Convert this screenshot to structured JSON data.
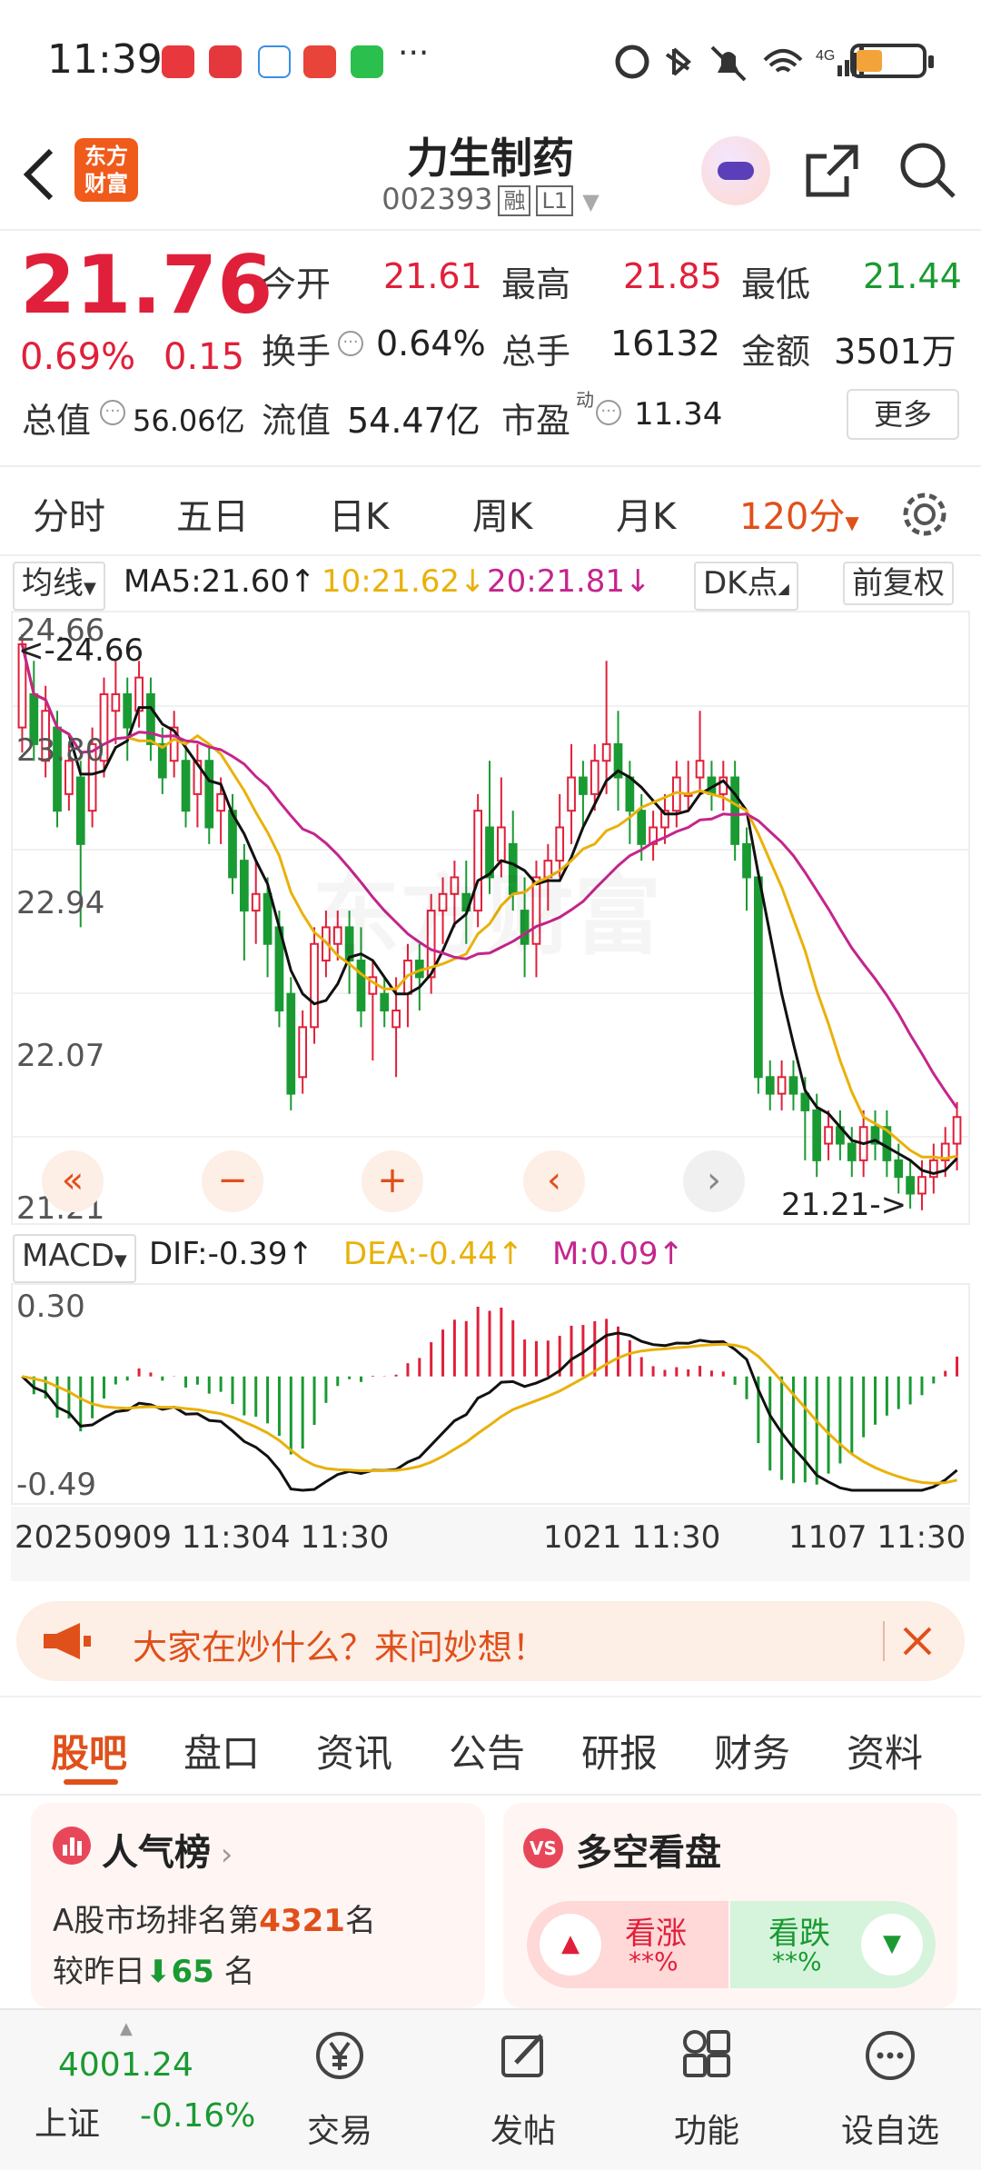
{
  "status_bar": {
    "time": "11:39",
    "network": "4G"
  },
  "header": {
    "back_icon": "chevron-left-icon",
    "logo_line1": "东方",
    "logo_line2": "财富",
    "stock_name": "力生制药",
    "stock_code": "002393",
    "tag_margin": "融",
    "tag_level": "L1"
  },
  "quote": {
    "price": "21.76",
    "change_pct": "0.69%",
    "change_amt": "0.15",
    "open_label": "今开",
    "open": "21.61",
    "high_label": "最高",
    "high": "21.85",
    "low_label": "最低",
    "low": "21.44",
    "turnover_label": "换手",
    "turnover": "0.64%",
    "volume_label": "总手",
    "volume": "16132",
    "amount_label": "金额",
    "amount": "3501万",
    "mktcap_label": "总值",
    "mktcap": "56.06亿",
    "float_label": "流值",
    "float": "54.47亿",
    "pe_label": "市盈",
    "pe_sup": "动",
    "pe": "11.34",
    "more_label": "更多"
  },
  "kline_tabs": [
    "分时",
    "五日",
    "日K",
    "周K",
    "月K",
    "120分"
  ],
  "legend": {
    "ma_select": "均线",
    "ma5": "MA5:21.60",
    "ma10": "10:21.62",
    "ma20": "20:21.81",
    "dk_label": "DK点",
    "adjust_label": "前复权",
    "macd_select": "MACD",
    "dif": "DIF:-0.39",
    "dea": "DEA:-0.44",
    "m": "M:0.09"
  },
  "chart_data": [
    {
      "type": "candlestick",
      "y_ticks": [
        "24.66",
        "23.80",
        "22.94",
        "22.07",
        "21.21"
      ],
      "ylim": [
        21.21,
        24.66
      ],
      "high_marker": "<-24.66",
      "low_marker": "21.21->",
      "x_labels": [
        "20250909 11:30",
        "4 11:30",
        "1021 11:30",
        "1107 11:30"
      ],
      "series_names": [
        "MA5",
        "MA10",
        "MA20"
      ],
      "candles": [
        {
          "o": 24.1,
          "c": 24.6,
          "h": 24.66,
          "l": 23.95
        },
        {
          "o": 24.3,
          "c": 24.0,
          "h": 24.5,
          "l": 23.9
        },
        {
          "o": 23.9,
          "c": 24.2,
          "h": 24.35,
          "l": 23.8
        },
        {
          "o": 24.1,
          "c": 23.6,
          "h": 24.2,
          "l": 23.5
        },
        {
          "o": 23.7,
          "c": 23.9,
          "h": 24.0,
          "l": 23.6
        },
        {
          "o": 23.8,
          "c": 23.4,
          "h": 23.9,
          "l": 22.9
        },
        {
          "o": 23.6,
          "c": 24.0,
          "h": 24.1,
          "l": 23.5
        },
        {
          "o": 23.9,
          "c": 24.3,
          "h": 24.4,
          "l": 23.8
        },
        {
          "o": 24.2,
          "c": 24.3,
          "h": 24.5,
          "l": 24.0
        },
        {
          "o": 24.3,
          "c": 24.1,
          "h": 24.4,
          "l": 23.9
        },
        {
          "o": 24.2,
          "c": 24.4,
          "h": 24.5,
          "l": 24.1
        },
        {
          "o": 24.3,
          "c": 24.0,
          "h": 24.4,
          "l": 23.9
        },
        {
          "o": 24.0,
          "c": 23.8,
          "h": 24.1,
          "l": 23.7
        },
        {
          "o": 23.9,
          "c": 24.1,
          "h": 24.2,
          "l": 23.8
        },
        {
          "o": 23.9,
          "c": 23.6,
          "h": 24.0,
          "l": 23.5
        },
        {
          "o": 23.7,
          "c": 23.9,
          "h": 24.0,
          "l": 23.5
        },
        {
          "o": 23.9,
          "c": 23.5,
          "h": 24.0,
          "l": 23.4
        },
        {
          "o": 23.6,
          "c": 23.7,
          "h": 23.8,
          "l": 23.4
        },
        {
          "o": 23.6,
          "c": 23.2,
          "h": 23.7,
          "l": 23.1
        },
        {
          "o": 23.3,
          "c": 23.0,
          "h": 23.4,
          "l": 22.7
        },
        {
          "o": 23.0,
          "c": 23.1,
          "h": 23.3,
          "l": 22.8
        },
        {
          "o": 23.1,
          "c": 22.8,
          "h": 23.2,
          "l": 22.6
        },
        {
          "o": 22.9,
          "c": 22.4,
          "h": 23.0,
          "l": 22.3
        },
        {
          "o": 22.5,
          "c": 21.9,
          "h": 22.6,
          "l": 21.8
        },
        {
          "o": 22.0,
          "c": 22.3,
          "h": 22.4,
          "l": 21.9
        },
        {
          "o": 22.3,
          "c": 22.8,
          "h": 22.9,
          "l": 22.2
        },
        {
          "o": 22.7,
          "c": 22.9,
          "h": 23.0,
          "l": 22.6
        },
        {
          "o": 22.8,
          "c": 22.9,
          "h": 23.0,
          "l": 22.7
        },
        {
          "o": 22.9,
          "c": 22.7,
          "h": 23.0,
          "l": 22.5
        },
        {
          "o": 22.7,
          "c": 22.4,
          "h": 22.9,
          "l": 22.3
        },
        {
          "o": 22.5,
          "c": 22.6,
          "h": 22.7,
          "l": 22.1
        },
        {
          "o": 22.5,
          "c": 22.4,
          "h": 22.6,
          "l": 22.3
        },
        {
          "o": 22.3,
          "c": 22.4,
          "h": 22.6,
          "l": 22.0
        },
        {
          "o": 22.5,
          "c": 22.7,
          "h": 22.8,
          "l": 22.3
        },
        {
          "o": 22.7,
          "c": 22.6,
          "h": 22.8,
          "l": 22.4
        },
        {
          "o": 22.6,
          "c": 23.0,
          "h": 23.1,
          "l": 22.5
        },
        {
          "o": 23.0,
          "c": 23.1,
          "h": 23.2,
          "l": 22.8
        },
        {
          "o": 23.1,
          "c": 23.2,
          "h": 23.3,
          "l": 22.9
        },
        {
          "o": 23.1,
          "c": 23.0,
          "h": 23.3,
          "l": 22.8
        },
        {
          "o": 23.0,
          "c": 23.6,
          "h": 23.7,
          "l": 22.9
        },
        {
          "o": 23.5,
          "c": 23.2,
          "h": 23.9,
          "l": 23.1
        },
        {
          "o": 23.3,
          "c": 23.5,
          "h": 23.8,
          "l": 23.2
        },
        {
          "o": 23.4,
          "c": 23.1,
          "h": 23.6,
          "l": 23.0
        },
        {
          "o": 23.0,
          "c": 22.8,
          "h": 23.2,
          "l": 22.6
        },
        {
          "o": 22.8,
          "c": 23.2,
          "h": 23.3,
          "l": 22.6
        },
        {
          "o": 23.2,
          "c": 23.3,
          "h": 23.4,
          "l": 23.0
        },
        {
          "o": 23.3,
          "c": 23.5,
          "h": 23.7,
          "l": 23.2
        },
        {
          "o": 23.6,
          "c": 23.8,
          "h": 24.0,
          "l": 23.4
        },
        {
          "o": 23.8,
          "c": 23.7,
          "h": 23.9,
          "l": 23.5
        },
        {
          "o": 23.7,
          "c": 23.9,
          "h": 24.0,
          "l": 23.6
        },
        {
          "o": 23.9,
          "c": 24.0,
          "h": 24.5,
          "l": 23.7
        },
        {
          "o": 24.0,
          "c": 23.8,
          "h": 24.2,
          "l": 23.6
        },
        {
          "o": 23.8,
          "c": 23.6,
          "h": 23.9,
          "l": 23.4
        },
        {
          "o": 23.6,
          "c": 23.4,
          "h": 23.7,
          "l": 23.3
        },
        {
          "o": 23.4,
          "c": 23.5,
          "h": 23.6,
          "l": 23.3
        },
        {
          "o": 23.5,
          "c": 23.6,
          "h": 23.7,
          "l": 23.4
        },
        {
          "o": 23.6,
          "c": 23.8,
          "h": 23.9,
          "l": 23.5
        },
        {
          "o": 23.7,
          "c": 23.7,
          "h": 23.9,
          "l": 23.6
        },
        {
          "o": 23.8,
          "c": 23.9,
          "h": 24.2,
          "l": 23.7
        },
        {
          "o": 23.8,
          "c": 23.7,
          "h": 23.9,
          "l": 23.6
        },
        {
          "o": 23.7,
          "c": 23.8,
          "h": 23.9,
          "l": 23.6
        },
        {
          "o": 23.8,
          "c": 23.4,
          "h": 23.9,
          "l": 23.3
        },
        {
          "o": 23.4,
          "c": 23.2,
          "h": 23.5,
          "l": 23.0
        },
        {
          "o": 23.2,
          "c": 22.0,
          "h": 23.2,
          "l": 21.9
        },
        {
          "o": 22.0,
          "c": 21.9,
          "h": 22.1,
          "l": 21.8
        },
        {
          "o": 21.9,
          "c": 22.0,
          "h": 22.1,
          "l": 21.8
        },
        {
          "o": 22.0,
          "c": 21.9,
          "h": 22.1,
          "l": 21.8
        },
        {
          "o": 21.9,
          "c": 21.8,
          "h": 22.0,
          "l": 21.5
        },
        {
          "o": 21.8,
          "c": 21.5,
          "h": 21.9,
          "l": 21.4
        },
        {
          "o": 21.6,
          "c": 21.7,
          "h": 21.8,
          "l": 21.5
        },
        {
          "o": 21.7,
          "c": 21.6,
          "h": 21.8,
          "l": 21.5
        },
        {
          "o": 21.6,
          "c": 21.5,
          "h": 21.7,
          "l": 21.4
        },
        {
          "o": 21.5,
          "c": 21.7,
          "h": 21.8,
          "l": 21.4
        },
        {
          "o": 21.7,
          "c": 21.6,
          "h": 21.8,
          "l": 21.5
        },
        {
          "o": 21.7,
          "c": 21.5,
          "h": 21.8,
          "l": 21.4
        },
        {
          "o": 21.5,
          "c": 21.4,
          "h": 21.6,
          "l": 21.3
        },
        {
          "o": 21.4,
          "c": 21.3,
          "h": 21.5,
          "l": 21.21
        },
        {
          "o": 21.3,
          "c": 21.4,
          "h": 21.5,
          "l": 21.2
        },
        {
          "o": 21.4,
          "c": 21.5,
          "h": 21.6,
          "l": 21.3
        },
        {
          "o": 21.5,
          "c": 21.6,
          "h": 21.7,
          "l": 21.4
        },
        {
          "o": 21.6,
          "c": 21.76,
          "h": 21.85,
          "l": 21.44
        }
      ]
    },
    {
      "type": "macd",
      "y_ticks": [
        "0.30",
        "-0.49"
      ],
      "ylim": [
        -0.49,
        0.3
      ]
    }
  ],
  "nav_buttons": [
    "«",
    "−",
    "+",
    "‹",
    "›"
  ],
  "banner": {
    "text": "大家在炒什么？来问妙想！"
  },
  "sub_tabs": [
    "股吧",
    "盘口",
    "资讯",
    "公告",
    "研报",
    "财务",
    "资料"
  ],
  "popularity": {
    "title": "人气榜",
    "line1_prefix": "A股市场排名第",
    "rank": "4321",
    "line1_suffix": "名",
    "line2_prefix": "较昨日",
    "rank_change": "65",
    "line2_suffix": "名"
  },
  "sentiment": {
    "title": "多空看盘",
    "bull_label": "看涨",
    "bull_value": "**%",
    "bear_label": "看跌",
    "bear_value": "**%"
  },
  "bottom_bar": {
    "index_value": "4001.24",
    "index_name": "上证",
    "index_change": "-0.16%",
    "items": [
      "交易",
      "发帖",
      "功能",
      "设自选"
    ]
  },
  "colors": {
    "up": "#e0203a",
    "down": "#1a9a32",
    "ma5": "#111111",
    "ma10": "#e9b10a",
    "ma20": "#c4258c",
    "accent": "#e0501a"
  }
}
